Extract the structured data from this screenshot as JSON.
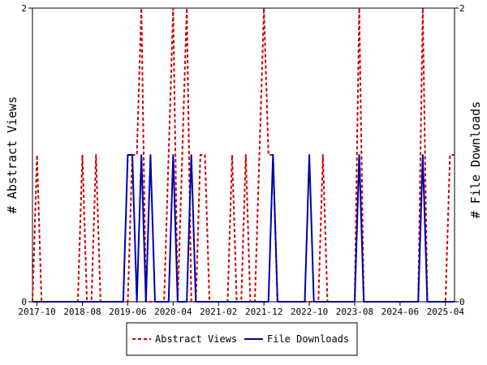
{
  "chart_data": {
    "type": "line",
    "ylabel_left": "# Abstract Views",
    "ylabel_right": "# File Downloads",
    "ylim": [
      0,
      2
    ],
    "y_ticks": [
      "0",
      "2"
    ],
    "x_tick_labels": [
      "2017-10",
      "2018-08",
      "2019-06",
      "2020-04",
      "2021-02",
      "2021-12",
      "2022-10",
      "2023-08",
      "2024-06",
      "2025-04"
    ],
    "x_months": [
      "2017-09",
      "2017-10",
      "2017-11",
      "2017-12",
      "2018-01",
      "2018-02",
      "2018-03",
      "2018-04",
      "2018-05",
      "2018-06",
      "2018-07",
      "2018-08",
      "2018-09",
      "2018-10",
      "2018-11",
      "2018-12",
      "2019-01",
      "2019-02",
      "2019-03",
      "2019-04",
      "2019-05",
      "2019-06",
      "2019-07",
      "2019-08",
      "2019-09",
      "2019-10",
      "2019-11",
      "2019-12",
      "2020-01",
      "2020-02",
      "2020-03",
      "2020-04",
      "2020-05",
      "2020-06",
      "2020-07",
      "2020-08",
      "2020-09",
      "2020-10",
      "2020-11",
      "2020-12",
      "2021-01",
      "2021-02",
      "2021-03",
      "2021-04",
      "2021-05",
      "2021-06",
      "2021-07",
      "2021-08",
      "2021-09",
      "2021-10",
      "2021-11",
      "2021-12",
      "2022-01",
      "2022-02",
      "2022-03",
      "2022-04",
      "2022-05",
      "2022-06",
      "2022-07",
      "2022-08",
      "2022-09",
      "2022-10",
      "2022-11",
      "2022-12",
      "2023-01",
      "2023-02",
      "2023-03",
      "2023-04",
      "2023-05",
      "2023-06",
      "2023-07",
      "2023-08",
      "2023-09",
      "2023-10",
      "2023-11",
      "2023-12",
      "2024-01",
      "2024-02",
      "2024-03",
      "2024-04",
      "2024-05",
      "2024-06",
      "2024-07",
      "2024-08",
      "2024-09",
      "2024-10",
      "2024-11",
      "2024-12",
      "2025-01",
      "2025-02",
      "2025-03",
      "2025-04",
      "2025-05",
      "2025-06"
    ],
    "series": [
      {
        "name": "Abstract Views",
        "color": "#cc0000",
        "style": "dashed",
        "values": [
          0,
          1,
          0,
          0,
          0,
          0,
          0,
          0,
          0,
          0,
          0,
          1,
          0,
          0,
          1,
          0,
          0,
          0,
          0,
          0,
          0,
          0,
          1,
          1,
          2,
          0,
          0,
          0,
          0,
          0,
          1,
          2,
          0,
          1,
          2,
          0,
          0,
          1,
          1,
          0,
          0,
          0,
          0,
          0,
          1,
          0,
          0,
          1,
          0,
          0,
          1,
          2,
          1,
          1,
          0,
          0,
          0,
          0,
          0,
          0,
          0,
          0,
          0,
          0,
          1,
          0,
          0,
          0,
          0,
          0,
          0,
          0,
          2,
          0,
          0,
          0,
          0,
          0,
          0,
          0,
          0,
          0,
          0,
          0,
          0,
          0,
          2,
          0,
          0,
          0,
          0,
          0,
          1,
          1
        ]
      },
      {
        "name": "File Downloads",
        "color": "#0000aa",
        "style": "solid",
        "values": [
          0,
          0,
          0,
          0,
          0,
          0,
          0,
          0,
          0,
          0,
          0,
          0,
          0,
          0,
          0,
          0,
          0,
          0,
          0,
          0,
          0,
          1,
          1,
          0,
          1,
          0,
          1,
          0,
          0,
          0,
          0,
          1,
          0,
          0,
          0,
          1,
          0,
          0,
          0,
          0,
          0,
          0,
          0,
          0,
          0,
          0,
          0,
          0,
          0,
          0,
          0,
          0,
          0,
          1,
          0,
          0,
          0,
          0,
          0,
          0,
          0,
          1,
          0,
          0,
          0,
          0,
          0,
          0,
          0,
          0,
          0,
          0,
          1,
          0,
          0,
          0,
          0,
          0,
          0,
          0,
          0,
          0,
          0,
          0,
          0,
          0,
          1,
          0,
          0,
          0,
          0,
          0,
          0,
          0
        ]
      }
    ],
    "legend": {
      "position": "bottom-center"
    }
  }
}
